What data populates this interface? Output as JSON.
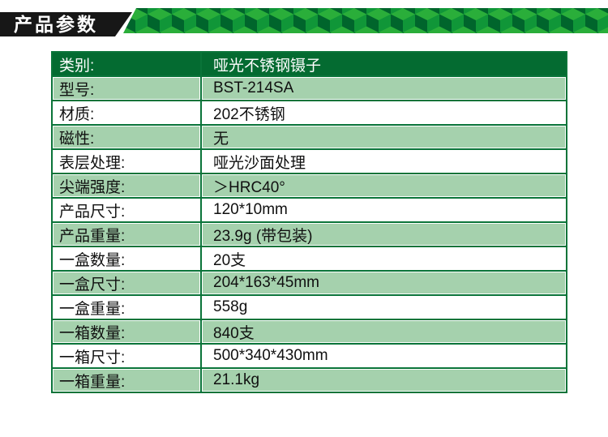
{
  "colors": {
    "page_bg": "#ffffff",
    "banner_black": "#171717",
    "title_white": "#ffffff",
    "border_green": "#0a7439",
    "header_green": "#046b31",
    "alt_row_green": "#a5d1ad",
    "text_dark": "#101010",
    "cube_top": "#2aae3a",
    "cube_left": "#00652c",
    "cube_right": "#109638"
  },
  "header": {
    "title": "产品参数"
  },
  "table": {
    "rows": [
      {
        "label": "类别:",
        "value": "哑光不锈钢镊子",
        "is_header": true
      },
      {
        "label": "型号:",
        "value": "BST-214SA"
      },
      {
        "label": "材质:",
        "value": "202不锈钢"
      },
      {
        "label": "磁性:",
        "value": "无"
      },
      {
        "label": "表层处理:",
        "value": "哑光沙面处理"
      },
      {
        "label": "尖端强度:",
        "value": "＞HRC40°"
      },
      {
        "label": "产品尺寸:",
        "value": "120*10mm"
      },
      {
        "label": "产品重量:",
        "value": "23.9g (带包装)"
      },
      {
        "label": "一盒数量:",
        "value": "20支"
      },
      {
        "label": "一盒尺寸:",
        "value": "204*163*45mm"
      },
      {
        "label": "一盒重量:",
        "value": "558g"
      },
      {
        "label": "一箱数量:",
        "value": "840支"
      },
      {
        "label": "一箱尺寸:",
        "value": "500*340*430mm"
      },
      {
        "label": "一箱重量:",
        "value": "21.1kg"
      }
    ]
  }
}
